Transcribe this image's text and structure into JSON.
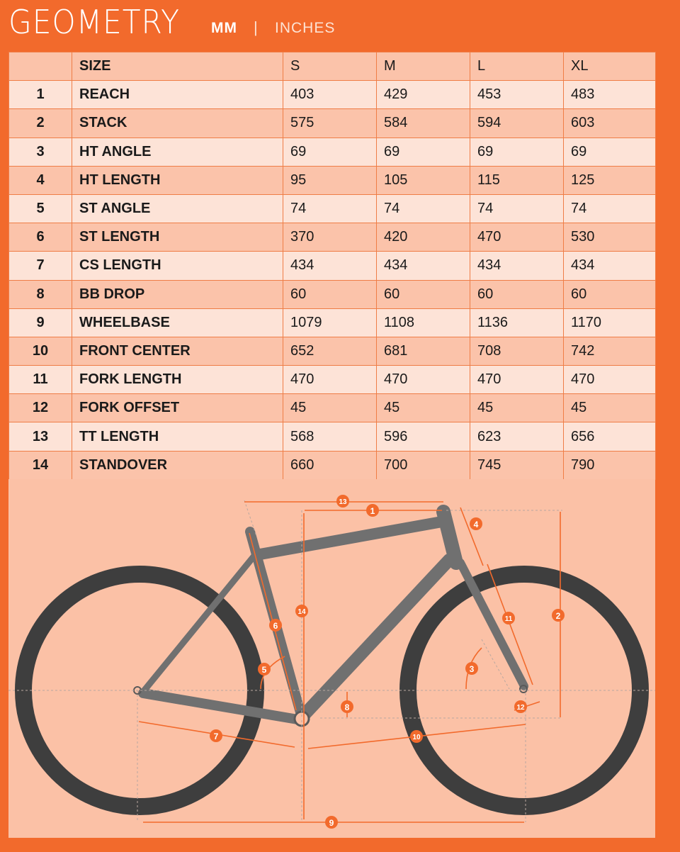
{
  "header": {
    "title": "GEOMETRY",
    "unit_mm": "MM",
    "separator": "|",
    "unit_inches": "INCHES"
  },
  "table": {
    "columns": [
      "",
      "SIZE",
      "S",
      "M",
      "L",
      "XL"
    ],
    "rows": [
      {
        "num": "1",
        "label": "REACH",
        "s": "403",
        "m": "429",
        "l": "453",
        "xl": "483"
      },
      {
        "num": "2",
        "label": "STACK",
        "s": "575",
        "m": "584",
        "l": "594",
        "xl": "603"
      },
      {
        "num": "3",
        "label": "HT ANGLE",
        "s": "69",
        "m": "69",
        "l": "69",
        "xl": "69"
      },
      {
        "num": "4",
        "label": "HT LENGTH",
        "s": "95",
        "m": "105",
        "l": "115",
        "xl": "125"
      },
      {
        "num": "5",
        "label": "ST ANGLE",
        "s": "74",
        "m": "74",
        "l": "74",
        "xl": "74"
      },
      {
        "num": "6",
        "label": "ST LENGTH",
        "s": "370",
        "m": "420",
        "l": "470",
        "xl": "530"
      },
      {
        "num": "7",
        "label": "CS LENGTH",
        "s": "434",
        "m": "434",
        "l": "434",
        "xl": "434"
      },
      {
        "num": "8",
        "label": "BB DROP",
        "s": "60",
        "m": "60",
        "l": "60",
        "xl": "60"
      },
      {
        "num": "9",
        "label": "WHEELBASE",
        "s": "1079",
        "m": "1108",
        "l": "1136",
        "xl": "1170"
      },
      {
        "num": "10",
        "label": "FRONT CENTER",
        "s": "652",
        "m": "681",
        "l": "708",
        "xl": "742"
      },
      {
        "num": "11",
        "label": "FORK LENGTH",
        "s": "470",
        "m": "470",
        "l": "470",
        "xl": "470"
      },
      {
        "num": "12",
        "label": "FORK OFFSET",
        "s": "45",
        "m": "45",
        "l": "45",
        "xl": "45"
      },
      {
        "num": "13",
        "label": "TT LENGTH",
        "s": "568",
        "m": "596",
        "l": "623",
        "xl": "656"
      },
      {
        "num": "14",
        "label": "STANDOVER",
        "s": "660",
        "m": "700",
        "l": "745",
        "xl": "790"
      }
    ]
  },
  "diagram": {
    "markers": [
      "1",
      "2",
      "3",
      "4",
      "5",
      "6",
      "7",
      "8",
      "9",
      "10",
      "11",
      "12",
      "13",
      "14"
    ],
    "colors": {
      "accent": "#f26a2c",
      "tire": "#3e3e3e",
      "frame": "#707070",
      "panel": "#fbc1a6"
    }
  }
}
